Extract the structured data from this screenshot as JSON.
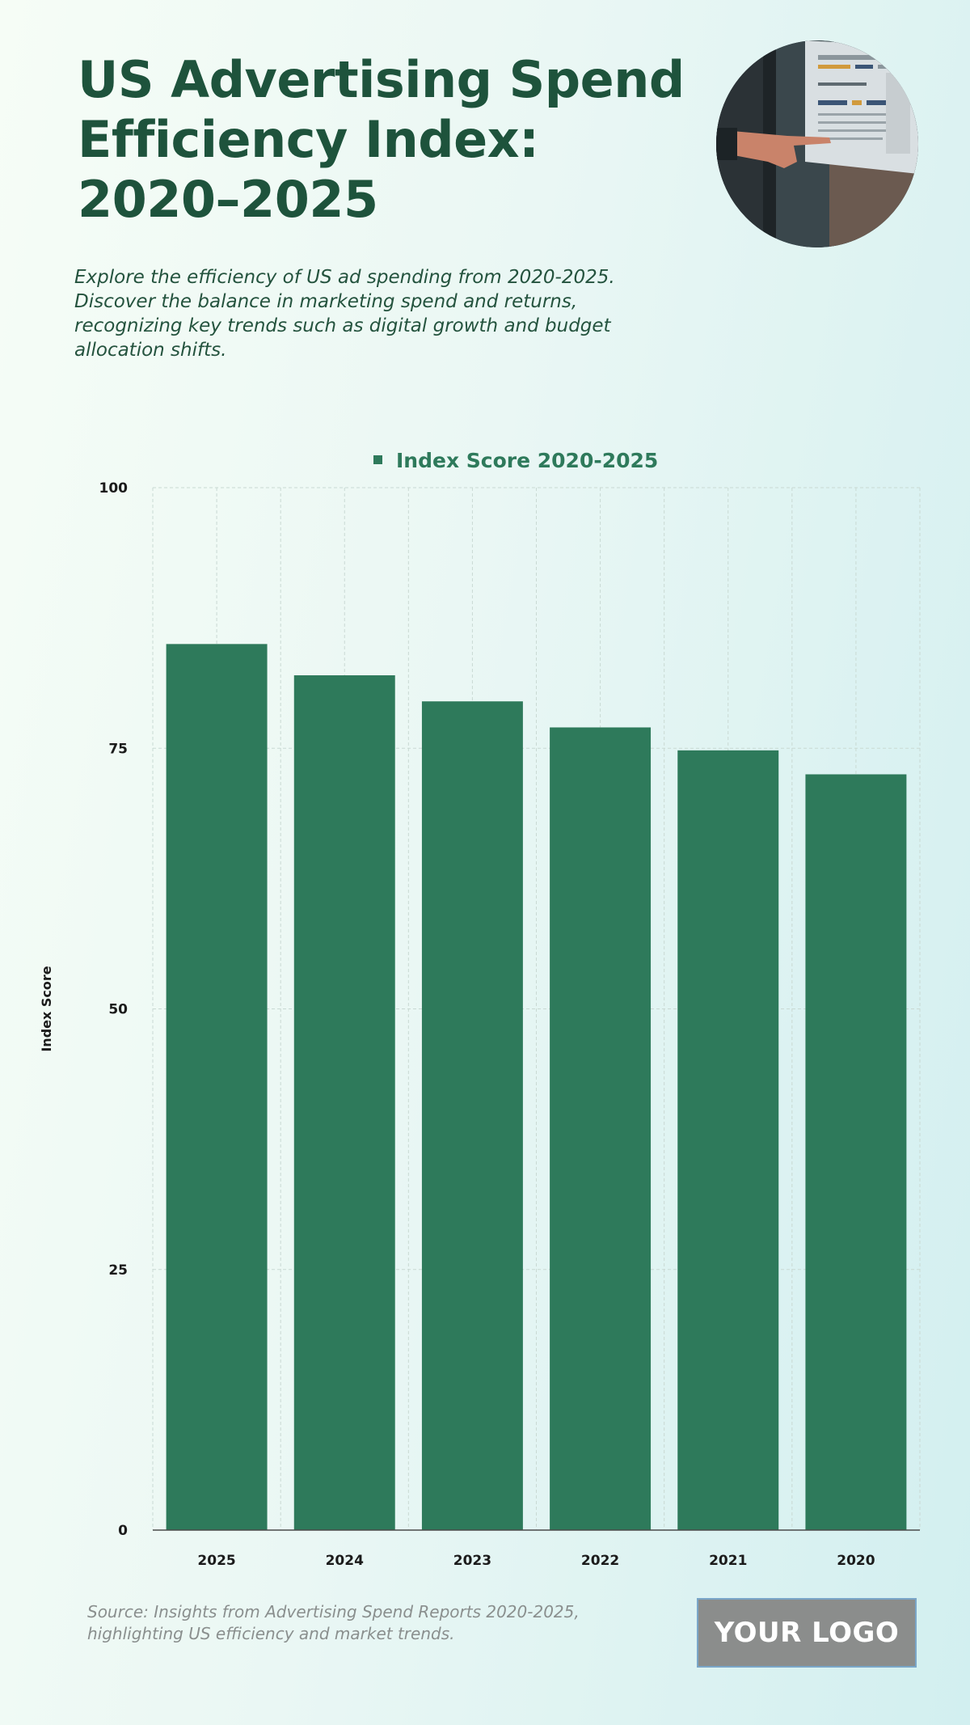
{
  "header": {
    "title": "US Advertising Spend Efficiency Index: 2020–2025",
    "subtitle": "Explore the efficiency of US ad spending from 2020-2025. Discover the balance in marketing spend and returns, recognizing key trends such as digital growth and budget allocation shifts."
  },
  "photo": {
    "icon": "hand-pointing-at-chart-photo"
  },
  "chart_data": {
    "type": "bar",
    "categories": [
      "2025",
      "2024",
      "2023",
      "2022",
      "2021",
      "2020"
    ],
    "series": [
      {
        "name": "Index Score 2020-2025",
        "values": [
          85,
          82,
          79.5,
          77,
          74.8,
          72.5
        ]
      }
    ],
    "title": "",
    "xlabel": "",
    "ylabel": "Index Score",
    "ylim": [
      0,
      100
    ],
    "yticks": [
      0,
      25,
      50,
      75,
      100
    ],
    "grid": true,
    "legend": "top-center",
    "bar_color": "#2e7a5b"
  },
  "footer": {
    "source": "Source: Insights from Advertising Spend Reports 2020-2025, highlighting US efficiency and market trends.",
    "logo": "YOUR LOGO"
  }
}
